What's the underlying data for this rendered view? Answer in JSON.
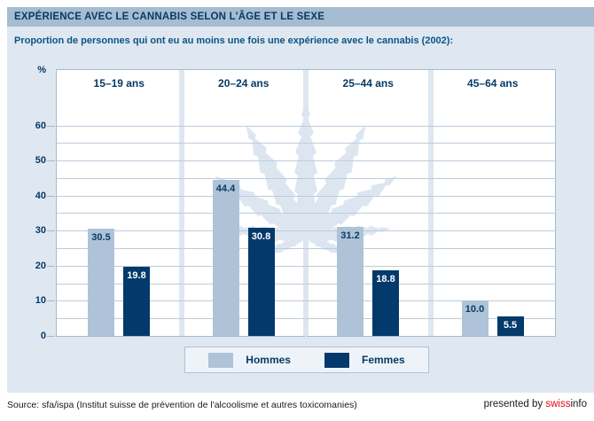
{
  "header": {
    "title": "EXPÉRIENCE AVEC LE CANNABIS SELON L'ÂGE ET LE SEXE",
    "subtitle": "Proportion de personnes qui ont eu au moins une fois une expérience avec le cannabis (2002):"
  },
  "chart_data": {
    "type": "bar",
    "title": "Expérience avec le cannabis selon l'âge et le sexe",
    "unit_label": "%",
    "categories": [
      "15–19 ans",
      "20–24 ans",
      "25–44 ans",
      "45–64 ans"
    ],
    "series": [
      {
        "name": "Hommes",
        "color": "#afc3d8",
        "label_color": "#073a66",
        "values": [
          30.5,
          44.4,
          31.2,
          10.0
        ]
      },
      {
        "name": "Femmes",
        "color": "#04396b",
        "label_color": "#ffffff",
        "values": [
          19.8,
          30.8,
          18.8,
          5.5
        ]
      }
    ],
    "ylim": [
      0,
      75.8
    ],
    "yticks": [
      0,
      10,
      20,
      30,
      40,
      50,
      60
    ],
    "grid_step": 5,
    "grid": "on",
    "legend_position": "bottom",
    "watermark": "cannabis-leaf"
  },
  "footer": {
    "source": "Source: sfa/ispa (Institut suisse de prévention de l'alcoolisme et autres toxicomanies)",
    "presented_by": "presented by ",
    "brand_swiss": "swiss",
    "brand_info": "info"
  },
  "colors": {
    "panel_background": "#dfe7f0",
    "titlebar_background": "#a6bcd0",
    "plot_background": "#ffffff",
    "gridline": "#bccddd",
    "axis": "#a3bbd0",
    "watermark": "#dde6f0",
    "brand_red": "#e30613"
  }
}
